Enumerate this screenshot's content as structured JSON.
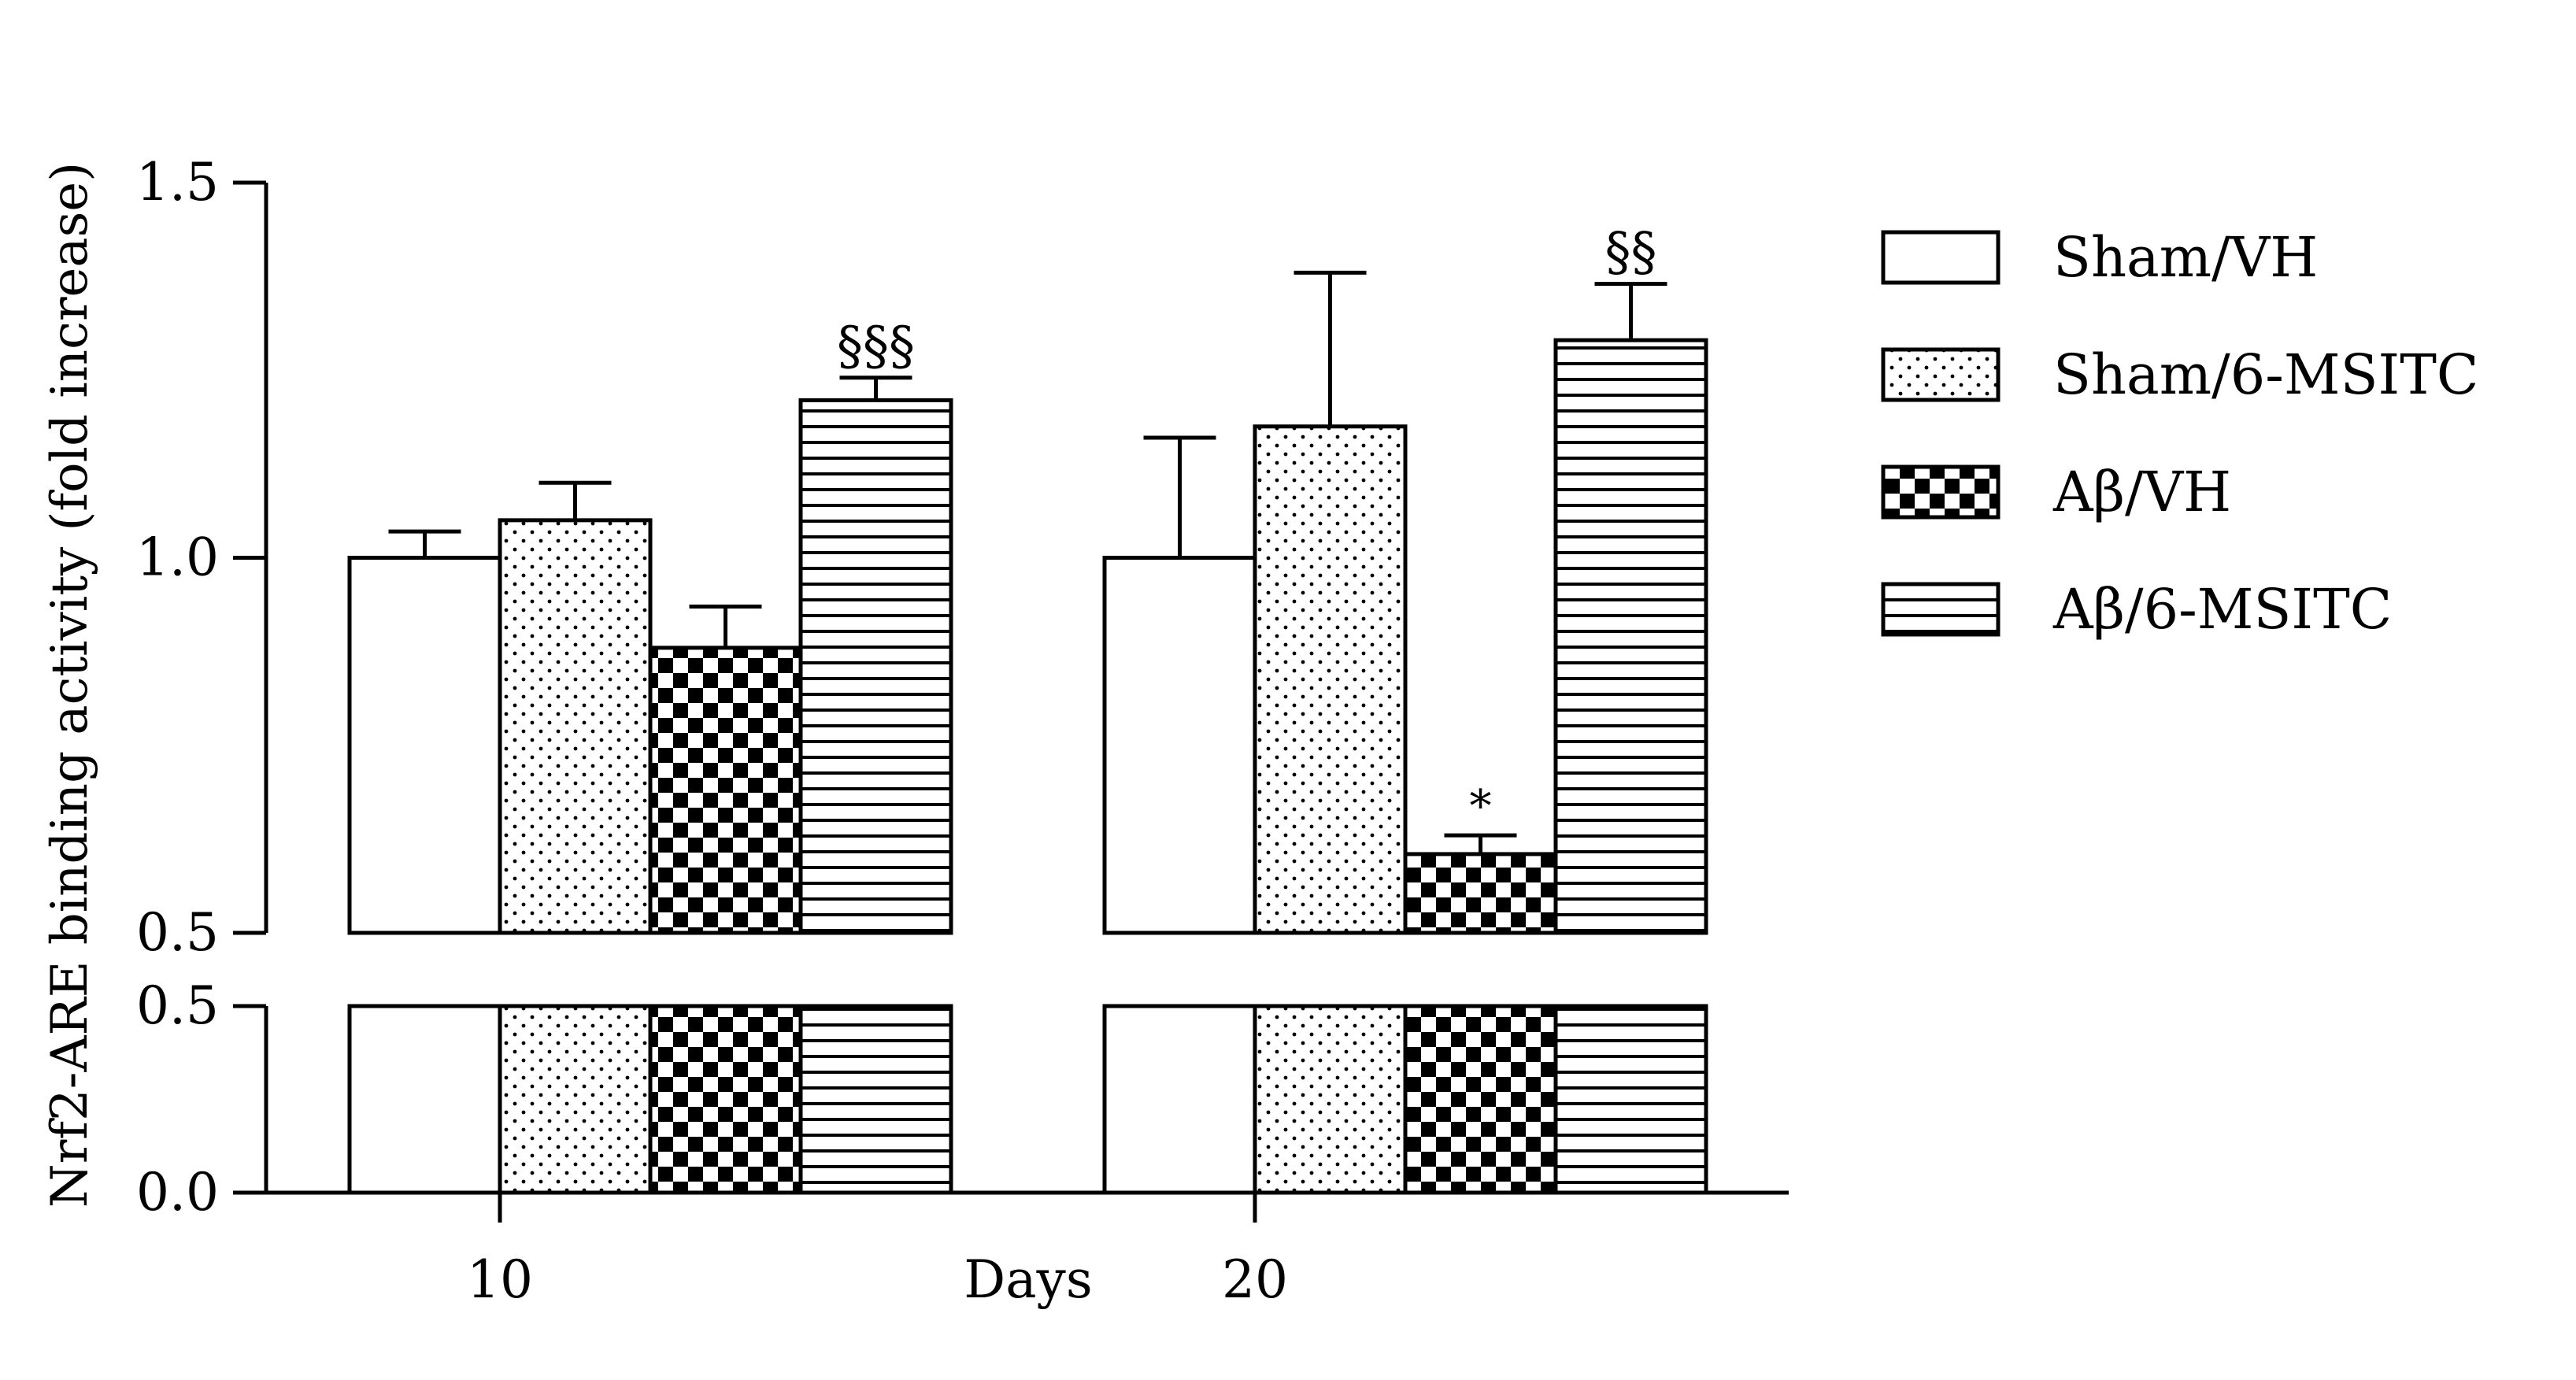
{
  "chart_data": {
    "type": "bar",
    "ylabel": "Nrf2-ARE binding activity (fold increase)",
    "xlabel": "Days",
    "categories": [
      "10",
      "20"
    ],
    "y_axis": {
      "broken": true,
      "lower_range": [
        0.0,
        0.5
      ],
      "upper_range": [
        0.5,
        1.5
      ],
      "lower_ticks": [
        "0.0",
        "0.5"
      ],
      "upper_ticks": [
        "0.5",
        "1.0",
        "1.5"
      ]
    },
    "legend_position": "right",
    "series": [
      {
        "name": "Sham/VH",
        "pattern": "empty",
        "values": [
          1.0,
          1.0
        ],
        "errors": [
          0.035,
          0.16
        ],
        "annotations": [
          "",
          ""
        ]
      },
      {
        "name": "Sham/6-MSITC",
        "pattern": "dots",
        "values": [
          1.05,
          1.175
        ],
        "errors": [
          0.05,
          0.205
        ],
        "annotations": [
          "",
          ""
        ]
      },
      {
        "name": "Aβ/VH",
        "pattern": "checker",
        "values": [
          0.88,
          0.605
        ],
        "errors": [
          0.055,
          0.025
        ],
        "annotations": [
          "",
          "*"
        ]
      },
      {
        "name": "Aβ/6-MSITC",
        "pattern": "hlines",
        "values": [
          1.21,
          1.29
        ],
        "errors": [
          0.03,
          0.075
        ],
        "annotations": [
          "§§§",
          "§§"
        ]
      }
    ]
  }
}
